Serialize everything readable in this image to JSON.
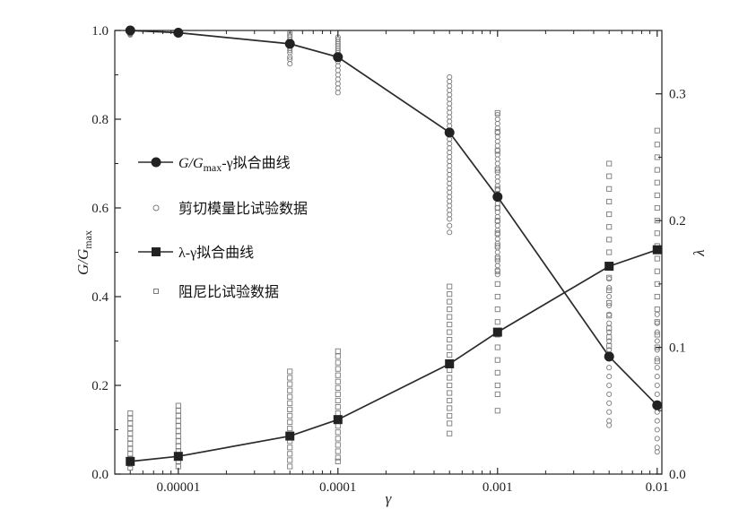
{
  "chart_data": {
    "type": "line",
    "x_scale": "log",
    "xlim": [
      4e-06,
      0.0107
    ],
    "xticks": [
      1e-05,
      0.0001,
      0.001,
      0.01
    ],
    "xtick_labels": [
      "0.00001",
      "0.0001",
      "0.001",
      "0.01"
    ],
    "xlabel": "γ",
    "y_left": {
      "label_main": "G/G",
      "label_sub": "max",
      "lim": [
        0,
        1.0
      ],
      "ticks": [
        0,
        0.2,
        0.4,
        0.6,
        0.8,
        1.0
      ],
      "tick_labels": [
        "0.0",
        "0.2",
        "0.4",
        "0.6",
        "0.8",
        "1.0"
      ]
    },
    "y_right": {
      "label": "λ",
      "lim": [
        0,
        0.35
      ],
      "ticks": [
        0,
        0.1,
        0.2,
        0.3
      ],
      "tick_labels": [
        "0.0",
        "0.1",
        "0.2",
        "0.3"
      ]
    },
    "grid": false,
    "legend_position": "left",
    "colors": {
      "fit": "#2b2b2b",
      "scatter": "#7a7a7a"
    },
    "series": [
      {
        "name_parts": [
          "G/G",
          "max",
          "-γ拟合曲线"
        ],
        "axis": "left",
        "kind": "line",
        "marker": "filled-circle",
        "x": [
          5e-06,
          1e-05,
          5e-05,
          0.0001,
          0.0005,
          0.001,
          0.005,
          0.01
        ],
        "y": [
          1.0,
          0.995,
          0.97,
          0.94,
          0.77,
          0.625,
          0.265,
          0.155
        ]
      },
      {
        "name": "剪切模量比试验数据",
        "axis": "left",
        "kind": "scatter",
        "marker": "open-circle",
        "columns": [
          {
            "x": 5e-06,
            "y": [
              1.0,
              0.998,
              0.995,
              0.993,
              0.99,
              0.999,
              0.997,
              0.992
            ]
          },
          {
            "x": 1e-05,
            "y": [
              1.0,
              0.998,
              0.996,
              0.994,
              0.992,
              0.99,
              0.997,
              0.993
            ]
          },
          {
            "x": 5e-05,
            "y": [
              0.995,
              0.99,
              0.985,
              0.98,
              0.975,
              0.97,
              0.965,
              0.96,
              0.955,
              0.95,
              0.94,
              0.935,
              0.925
            ]
          },
          {
            "x": 0.0001,
            "y": [
              0.985,
              0.98,
              0.975,
              0.97,
              0.965,
              0.96,
              0.955,
              0.95,
              0.94,
              0.93,
              0.92,
              0.91,
              0.9,
              0.89,
              0.88,
              0.87,
              0.86
            ]
          },
          {
            "x": 0.0005,
            "y": [
              0.895,
              0.885,
              0.875,
              0.865,
              0.855,
              0.845,
              0.835,
              0.825,
              0.815,
              0.805,
              0.795,
              0.785,
              0.775,
              0.765,
              0.755,
              0.745,
              0.735,
              0.725,
              0.715,
              0.705,
              0.695,
              0.685,
              0.675,
              0.665,
              0.655,
              0.645,
              0.635,
              0.625,
              0.615,
              0.605,
              0.595,
              0.585,
              0.575,
              0.56,
              0.545
            ]
          },
          {
            "x": 0.001,
            "y": [
              0.81,
              0.8,
              0.79,
              0.78,
              0.77,
              0.76,
              0.75,
              0.74,
              0.73,
              0.72,
              0.71,
              0.7,
              0.69,
              0.68,
              0.67,
              0.66,
              0.65,
              0.64,
              0.63,
              0.62,
              0.61,
              0.6,
              0.59,
              0.58,
              0.57,
              0.56,
              0.55,
              0.54,
              0.53,
              0.52,
              0.51,
              0.5,
              0.49,
              0.48,
              0.47,
              0.46,
              0.45
            ]
          },
          {
            "x": 0.005,
            "y": [
              0.44,
              0.42,
              0.4,
              0.38,
              0.36,
              0.34,
              0.32,
              0.3,
              0.28,
              0.26,
              0.24,
              0.22,
              0.2,
              0.18,
              0.16,
              0.14,
              0.12,
              0.11
            ]
          },
          {
            "x": 0.01,
            "y": [
              0.36,
              0.34,
              0.32,
              0.3,
              0.28,
              0.26,
              0.24,
              0.22,
              0.2,
              0.18,
              0.16,
              0.14,
              0.12,
              0.1,
              0.08,
              0.06,
              0.05
            ]
          }
        ]
      },
      {
        "name": "λ-γ拟合曲线",
        "axis": "right",
        "kind": "line",
        "marker": "filled-square",
        "x": [
          5e-06,
          1e-05,
          5e-05,
          0.0001,
          0.0005,
          0.001,
          0.005,
          0.01
        ],
        "y": [
          0.01,
          0.014,
          0.03,
          0.043,
          0.087,
          0.112,
          0.164,
          0.177
        ]
      },
      {
        "name": "阻尼比试验数据",
        "axis": "right",
        "kind": "scatter",
        "marker": "open-square",
        "columns": [
          {
            "x": 5e-06,
            "y": [
              0.048,
              0.044,
              0.04,
              0.036,
              0.032,
              0.028,
              0.024,
              0.02,
              0.016,
              0.012,
              0.008,
              0.005
            ]
          },
          {
            "x": 1e-05,
            "y": [
              0.054,
              0.05,
              0.046,
              0.042,
              0.038,
              0.034,
              0.03,
              0.026,
              0.022,
              0.018,
              0.014,
              0.01,
              0.006
            ]
          },
          {
            "x": 5e-05,
            "y": [
              0.081,
              0.076,
              0.071,
              0.066,
              0.061,
              0.056,
              0.051,
              0.046,
              0.041,
              0.036,
              0.031,
              0.026,
              0.021,
              0.016,
              0.011,
              0.006
            ]
          },
          {
            "x": 0.0001,
            "y": [
              0.097,
              0.093,
              0.088,
              0.083,
              0.078,
              0.073,
              0.068,
              0.063,
              0.058,
              0.053,
              0.048,
              0.043,
              0.038,
              0.033,
              0.028,
              0.023,
              0.018,
              0.013,
              0.01
            ]
          },
          {
            "x": 0.0005,
            "y": [
              0.148,
              0.142,
              0.136,
              0.13,
              0.124,
              0.118,
              0.112,
              0.106,
              0.1,
              0.094,
              0.088,
              0.082,
              0.076,
              0.07,
              0.064,
              0.058,
              0.052,
              0.046,
              0.04,
              0.032
            ]
          },
          {
            "x": 0.001,
            "y": [
              0.285,
              0.27,
              0.255,
              0.24,
              0.225,
              0.21,
              0.2,
              0.19,
              0.18,
              0.17,
              0.16,
              0.15,
              0.14,
              0.13,
              0.12,
              0.11,
              0.1,
              0.09,
              0.08,
              0.07,
              0.063,
              0.05
            ]
          },
          {
            "x": 0.005,
            "y": [
              0.245,
              0.235,
              0.225,
              0.215,
              0.205,
              0.195,
              0.185,
              0.175,
              0.165,
              0.155,
              0.145,
              0.135,
              0.125,
              0.115,
              0.108,
              0.101
            ]
          },
          {
            "x": 0.01,
            "y": [
              0.271,
              0.26,
              0.25,
              0.24,
              0.23,
              0.22,
              0.21,
              0.2,
              0.19,
              0.18,
              0.17,
              0.16,
              0.15,
              0.14,
              0.13,
              0.12,
              0.11,
              0.1,
              0.089
            ]
          }
        ]
      }
    ]
  }
}
